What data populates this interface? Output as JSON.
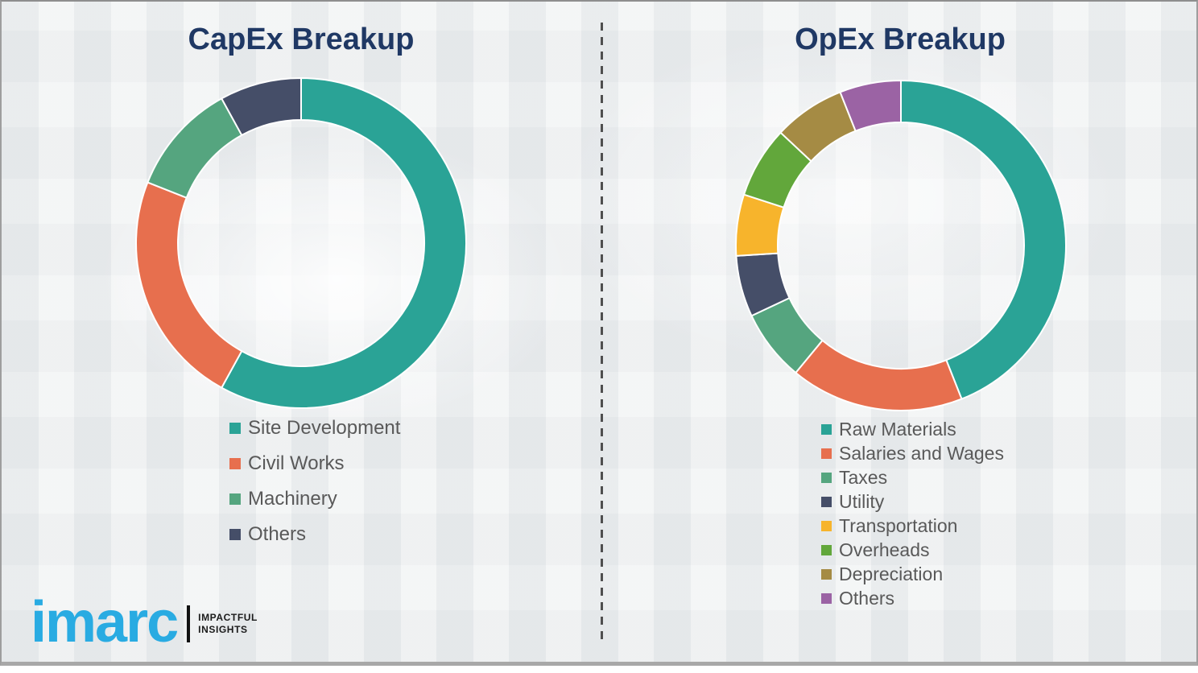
{
  "style": {
    "background": "#eef0f1",
    "title_color": "#1f3864",
    "legend_text_color": "#595959",
    "divider_color": "#4f4f4f"
  },
  "branding": {
    "logo_text": "imarc",
    "logo_color": "#29abe2",
    "tagline_line1": "IMPACTFUL",
    "tagline_line2": "INSIGHTS"
  },
  "chart_data": [
    {
      "type": "pie",
      "subtype": "donut",
      "title": "CapEx Breakup",
      "labels": [
        "Site Development",
        "Civil Works",
        "Machinery",
        "Others"
      ],
      "values": [
        58,
        23,
        11,
        8
      ],
      "values_estimated_from_arc_angles": true,
      "colors": [
        "#2aa396",
        "#e76f4e",
        "#55a57f",
        "#454e68"
      ],
      "start_angle_deg": 0,
      "direction": "clockwise",
      "legend_position": "below-left",
      "data_labels_shown": false
    },
    {
      "type": "pie",
      "subtype": "donut",
      "title": "OpEx Breakup",
      "labels": [
        "Raw Materials",
        "Salaries and Wages",
        "Taxes",
        "Utility",
        "Transportation",
        "Overheads",
        "Depreciation",
        "Others"
      ],
      "values": [
        44,
        17,
        7,
        6,
        6,
        7,
        7,
        6
      ],
      "values_estimated_from_arc_angles": true,
      "colors": [
        "#2aa396",
        "#e76f4e",
        "#55a57f",
        "#454e68",
        "#f7b42c",
        "#62a73b",
        "#a58b44",
        "#9b63a4"
      ],
      "start_angle_deg": 0,
      "direction": "clockwise",
      "legend_position": "below-left",
      "data_labels_shown": false
    }
  ]
}
